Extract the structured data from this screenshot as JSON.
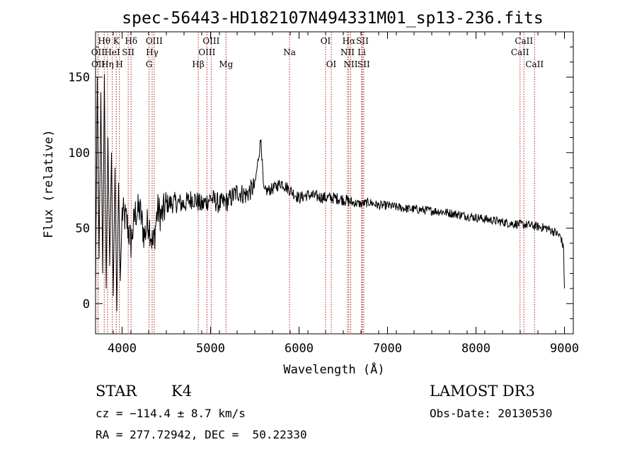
{
  "chart_data": {
    "type": "line",
    "title": "spec-56443-HD182107N494331M01_sp13-236.fits",
    "xlabel": "Wavelength (Å)",
    "ylabel": "Flux (relative)",
    "xlim": [
      3700,
      9100
    ],
    "ylim": [
      -20,
      180
    ],
    "x_ticks": [
      4000,
      5000,
      6000,
      7000,
      8000,
      9000
    ],
    "y_ticks": [
      0,
      50,
      100,
      150
    ],
    "series": [
      {
        "name": "flux",
        "x": [
          3700,
          3720,
          3740,
          3760,
          3780,
          3800,
          3820,
          3840,
          3860,
          3880,
          3900,
          3920,
          3940,
          3960,
          3980,
          4000,
          4050,
          4100,
          4150,
          4200,
          4250,
          4300,
          4350,
          4400,
          4450,
          4500,
          4600,
          4700,
          4800,
          4900,
          5000,
          5100,
          5200,
          5300,
          5400,
          5500,
          5570,
          5600,
          5700,
          5800,
          5900,
          6000,
          6100,
          6200,
          6300,
          6400,
          6500,
          6600,
          6700,
          6800,
          6900,
          7000,
          7200,
          7400,
          7600,
          7800,
          8000,
          8200,
          8400,
          8600,
          8700,
          8800,
          8900,
          8960,
          8990,
          9000
        ],
        "y": [
          10,
          150,
          30,
          140,
          20,
          152,
          10,
          110,
          25,
          100,
          5,
          90,
          -5,
          80,
          15,
          60,
          55,
          40,
          60,
          62,
          45,
          55,
          38,
          62,
          58,
          66,
          67,
          66,
          70,
          65,
          70,
          66,
          68,
          74,
          72,
          78,
          110,
          74,
          76,
          80,
          75,
          70,
          72,
          71,
          70,
          70,
          69,
          67,
          66,
          67,
          65,
          65,
          63,
          62,
          61,
          59,
          57,
          55,
          53,
          52,
          51,
          50,
          47,
          44,
          36,
          10
        ]
      }
    ],
    "line_markers": [
      {
        "label": "Hθ",
        "wavelength": 3798,
        "row": 1
      },
      {
        "label": "OII",
        "wavelength": 3727,
        "row": 2
      },
      {
        "label": "OII",
        "wavelength": 3729,
        "row": 3
      },
      {
        "label": "K",
        "wavelength": 3934,
        "row": 1
      },
      {
        "label": "HeI",
        "wavelength": 3889,
        "row": 2
      },
      {
        "label": "Hη",
        "wavelength": 3835,
        "row": 3
      },
      {
        "label": "Hδ",
        "wavelength": 4102,
        "row": 1
      },
      {
        "label": "SII",
        "wavelength": 4069,
        "row": 2
      },
      {
        "label": "H",
        "wavelength": 3969,
        "row": 3
      },
      {
        "label": "OIII",
        "wavelength": 4363,
        "row": 1
      },
      {
        "label": "Hγ",
        "wavelength": 4340,
        "row": 2
      },
      {
        "label": "G",
        "wavelength": 4304,
        "row": 3
      },
      {
        "label": "OIII",
        "wavelength": 5007,
        "row": 1
      },
      {
        "label": "OIII",
        "wavelength": 4959,
        "row": 2
      },
      {
        "label": "Hβ",
        "wavelength": 4861,
        "row": 3
      },
      {
        "label": "Mg",
        "wavelength": 5175,
        "row": 3
      },
      {
        "label": "Na",
        "wavelength": 5893,
        "row": 2
      },
      {
        "label": "OI",
        "wavelength": 6300,
        "row": 1
      },
      {
        "label": "OI",
        "wavelength": 6364,
        "row": 3
      },
      {
        "label": "Hα",
        "wavelength": 6563,
        "row": 1
      },
      {
        "label": "NII",
        "wavelength": 6548,
        "row": 2
      },
      {
        "label": "NII",
        "wavelength": 6584,
        "row": 3
      },
      {
        "label": "SII",
        "wavelength": 6716,
        "row": 1
      },
      {
        "label": "Li",
        "wavelength": 6708,
        "row": 2
      },
      {
        "label": "SII",
        "wavelength": 6731,
        "row": 3
      },
      {
        "label": "CaII",
        "wavelength": 8542,
        "row": 1
      },
      {
        "label": "CaII",
        "wavelength": 8498,
        "row": 2
      },
      {
        "label": "CaII",
        "wavelength": 8662,
        "row": 3
      }
    ]
  },
  "info": {
    "class": "STAR",
    "subclass": "K4",
    "survey": "LAMOST DR3",
    "cz": "cz = −114.4 ± 8.7 km/s",
    "obs_date": "Obs-Date: 20130530",
    "coords": "RA = 277.72942, DEC =  50.22330"
  },
  "colors": {
    "spectrum": "#000000",
    "line_marker": "#b02020",
    "axis": "#000000"
  }
}
